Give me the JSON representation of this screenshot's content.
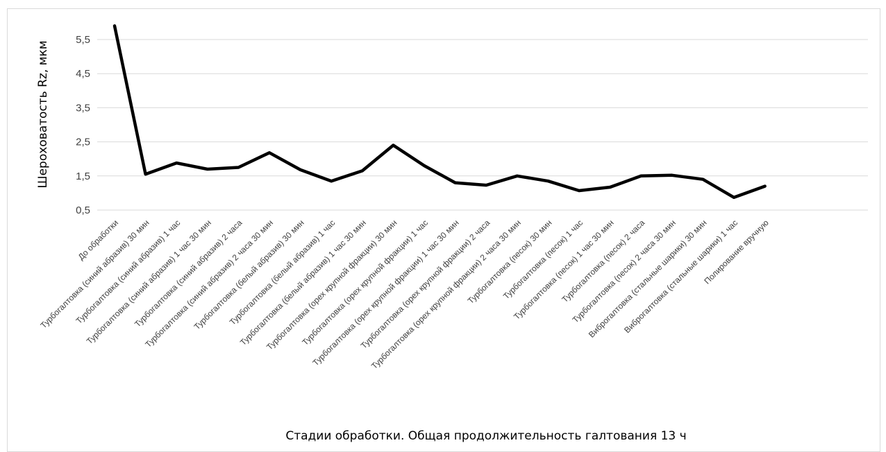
{
  "chart_data": {
    "type": "line",
    "title": "",
    "xlabel": "Стадии обработки. Общая продолжительность галтования 13 ч",
    "ylabel": "Шероховатость Rz, мкм",
    "ylim": [
      0.5,
      5.5
    ],
    "yticks": [
      "0,5",
      "1,5",
      "2,5",
      "3,5",
      "4,5",
      "5,5"
    ],
    "ytick_values": [
      0.5,
      1.5,
      2.5,
      3.5,
      4.5,
      5.5
    ],
    "grid": true,
    "legend": "none",
    "line_color": "#000000",
    "categories": [
      "До обработки",
      "Турбогалтовка (синий абразив) 30 мин",
      "Турбогалтовка (синий абразив) 1 час",
      "Турбогалтовка (синий абразив) 1 час 30 мин",
      "Турбогалтовка (синий абразив) 2 часа",
      "Турбогалтовка (синий абразив) 2 часа 30 мин",
      "Турбогалтовка (белый абразив) 30 мин",
      "Турбогалтовка (белый абразив) 1 час",
      "Турбогалтовка (белый абразив) 1 час 30 мин",
      "Турбогалтовка (орех крупной фракции) 30 мин",
      "Турбогалтовка (орех крупной фракции) 1 час",
      "Турбогалтовка (орех крупной фракции) 1 час 30 мин",
      "Турбогалтовка (орех крупной фракции) 2 часа",
      "Турбогалтовка (орех крупной фракции) 2 часа 30 мин",
      "Турбогалтовка (песок) 30 мин",
      "Турбогалтовка (песок) 1 час",
      "Турбогалтовка (песок) 1 час 30 мин",
      "Турбогалтовка (песок) 2 часа",
      "Турбогалтовка (песок) 2 часа 30 мин",
      "Виброгалтовка (стальные шарики) 30 мин",
      "Виброгалтовка (стальные шарики) 1 час",
      "Полирование вручную"
    ],
    "series": [
      {
        "values": [
          5.9,
          1.55,
          1.88,
          1.7,
          1.75,
          2.18,
          1.68,
          1.35,
          1.65,
          2.4,
          1.8,
          1.3,
          1.23,
          1.5,
          1.35,
          1.07,
          1.17,
          1.5,
          1.52,
          1.4,
          0.87,
          1.2
        ]
      }
    ]
  }
}
